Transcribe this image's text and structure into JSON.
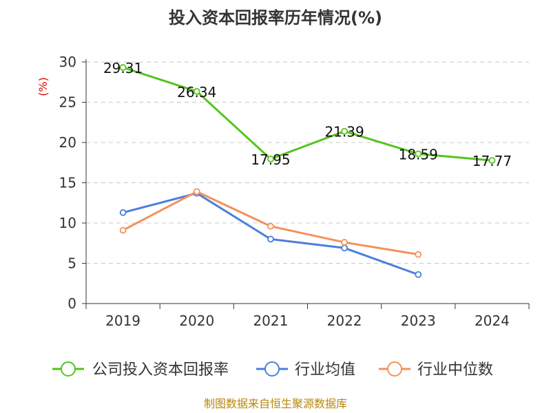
{
  "chart_data": {
    "type": "line",
    "title": "投入资本回报率历年情况(%)",
    "y_unit": "(%)",
    "categories": [
      "2019",
      "2020",
      "2021",
      "2022",
      "2023",
      "2024"
    ],
    "ylim": [
      0,
      30
    ],
    "yticks": [
      0,
      5,
      10,
      15,
      20,
      25,
      30
    ],
    "grid": true,
    "legend_position": "bottom",
    "series": [
      {
        "name": "公司投入资本回报率",
        "color": "#52c41a",
        "values": [
          29.31,
          26.34,
          17.95,
          21.39,
          18.59,
          17.77
        ],
        "labels": [
          "29.31",
          "26.34",
          "17.95",
          "21.39",
          "18.59",
          "17.77"
        ]
      },
      {
        "name": "行业均值",
        "color": "#4a7fdb",
        "values": [
          11.3,
          13.7,
          8.0,
          6.9,
          3.6,
          null
        ]
      },
      {
        "name": "行业中位数",
        "color": "#f5905a",
        "values": [
          9.1,
          13.9,
          9.6,
          7.6,
          6.1,
          null
        ]
      }
    ]
  },
  "source_text": "制图数据来自恒生聚源数据库"
}
